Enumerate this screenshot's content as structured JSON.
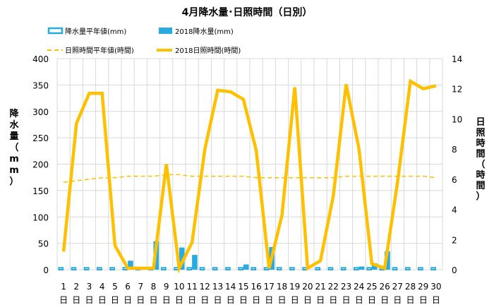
{
  "chart_data": {
    "type": "bar",
    "title": "4月降水量･日照時間（日別）",
    "ylabel_left": "降水量（mm）",
    "ylabel_right": "日照時間（時間）",
    "day_suffix": "日",
    "ylim_left": [
      0,
      400
    ],
    "yticks_left": [
      "0",
      "50",
      "100",
      "150",
      "200",
      "250",
      "300",
      "350",
      "400"
    ],
    "ylim_right": [
      0,
      14
    ],
    "yticks_right": [
      "0",
      "2",
      "4",
      "6",
      "8",
      "10",
      "12",
      "14"
    ],
    "categories": [
      "1",
      "2",
      "3",
      "4",
      "5",
      "6",
      "7",
      "8",
      "9",
      "10",
      "11",
      "12",
      "13",
      "14",
      "15",
      "16",
      "17",
      "18",
      "19",
      "20",
      "21",
      "22",
      "23",
      "24",
      "25",
      "26",
      "27",
      "28",
      "29",
      "30"
    ],
    "grid": true,
    "legend": [
      {
        "key": "rain_normal",
        "label": "降水量平年値(mm)"
      },
      {
        "key": "rain_2018",
        "label": "2018降水量(mm)"
      },
      {
        "key": "sun_normal",
        "label": "日照時間平年値(時間)"
      },
      {
        "key": "sun_2018",
        "label": "2018日照時間(時間)"
      }
    ],
    "series": [
      {
        "key": "rain_normal",
        "name": "降水量平年値(mm)",
        "axis": "left",
        "kind": "bar",
        "color": "#29ABE2",
        "values": [
          5,
          5,
          5,
          5,
          5,
          5,
          5,
          5,
          5,
          5,
          5,
          5,
          5,
          5,
          5,
          5,
          5,
          5,
          5,
          5,
          5,
          5,
          5,
          5,
          5,
          5,
          5,
          5,
          5,
          5
        ]
      },
      {
        "key": "rain_2018",
        "name": "2018降水量(mm)",
        "axis": "left",
        "kind": "bar",
        "color": "#29ABE2",
        "values": [
          0,
          0,
          0,
          0,
          0,
          17,
          4,
          54,
          0,
          42,
          28,
          0,
          0,
          0,
          10,
          0,
          43,
          0,
          0,
          0,
          0,
          0,
          0,
          6,
          12,
          35,
          0,
          0,
          0,
          0
        ]
      },
      {
        "key": "sun_normal",
        "name": "日照時間平年値(時間)",
        "axis": "right",
        "kind": "line",
        "color": "#FFC000",
        "values": [
          5.8,
          5.9,
          6.0,
          6.1,
          6.1,
          6.2,
          6.2,
          6.2,
          6.3,
          6.3,
          6.2,
          6.2,
          6.2,
          6.2,
          6.2,
          6.1,
          6.1,
          6.1,
          6.1,
          6.1,
          6.1,
          6.1,
          6.2,
          6.2,
          6.2,
          6.2,
          6.2,
          6.2,
          6.2,
          6.1
        ]
      },
      {
        "key": "sun_2018",
        "name": "2018日照時間(時間)",
        "axis": "right",
        "kind": "line",
        "color": "#FFC000",
        "values": [
          1.2,
          9.7,
          11.7,
          11.7,
          1.6,
          0.1,
          0.1,
          0.1,
          7.0,
          0.1,
          1.8,
          8.0,
          11.9,
          11.8,
          11.3,
          7.9,
          0.1,
          3.6,
          12.1,
          0.1,
          0.6,
          4.9,
          12.3,
          8.0,
          0.4,
          0.1,
          5.8,
          12.5,
          12.0,
          12.2
        ]
      }
    ]
  }
}
